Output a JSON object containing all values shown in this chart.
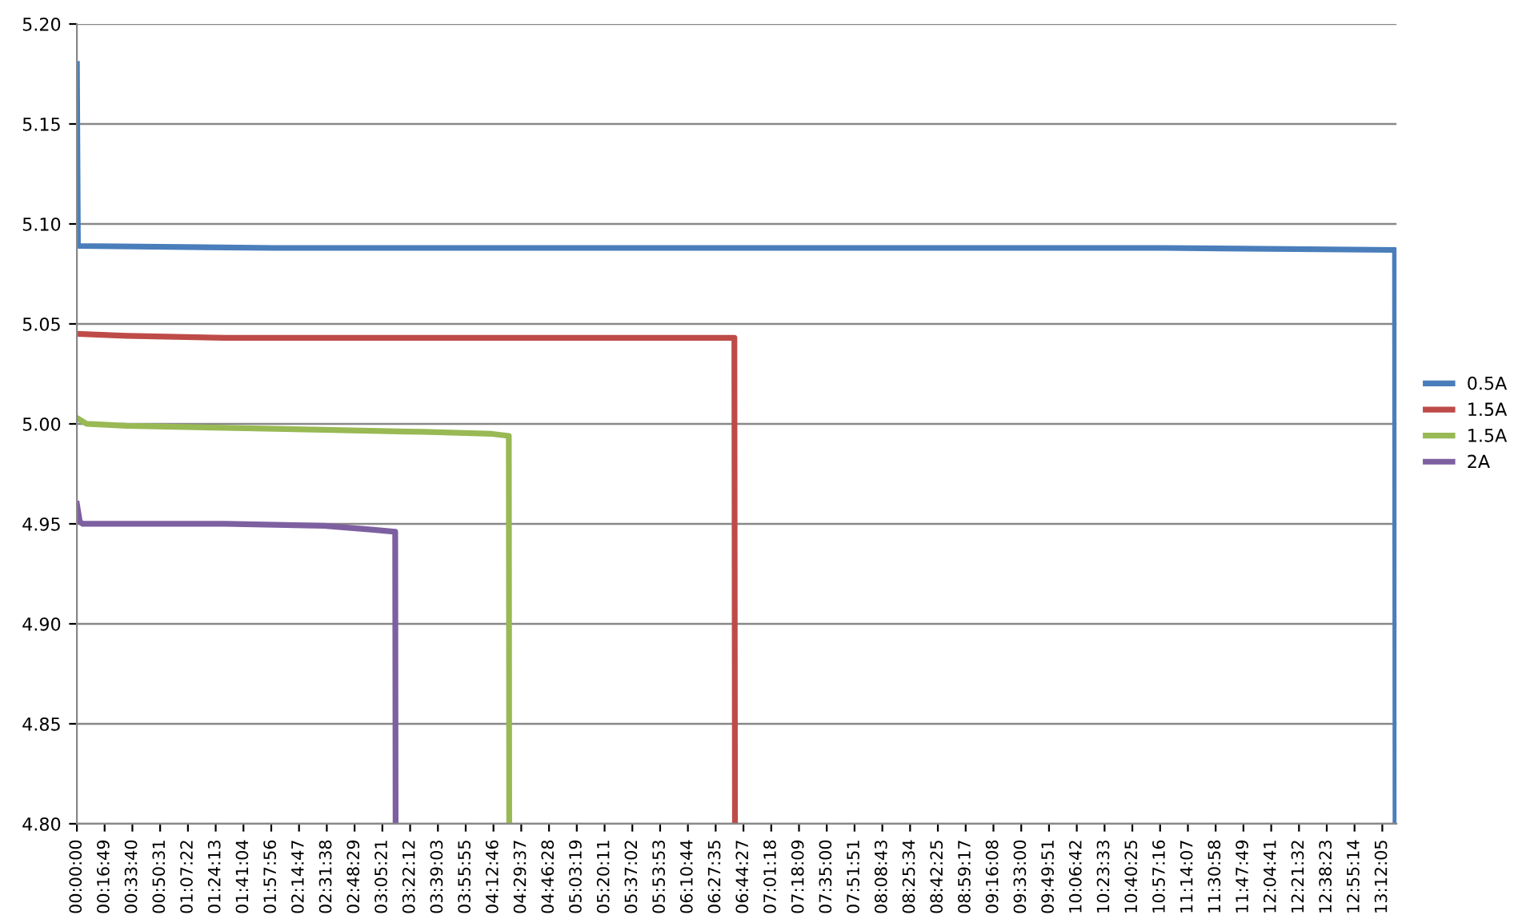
{
  "chart_data": {
    "type": "line",
    "xlim": [
      0,
      13.345
    ],
    "xticks": [
      {
        "value": 0,
        "label": "00:00:00"
      },
      {
        "value": 0.2803,
        "label": "00:16:49"
      },
      {
        "value": 0.5611,
        "label": "00:33:40"
      },
      {
        "value": 0.8419,
        "label": "00:50:31"
      },
      {
        "value": 1.1228,
        "label": "01:07:22"
      },
      {
        "value": 1.4036,
        "label": "01:24:13"
      },
      {
        "value": 1.6844,
        "label": "01:41:04"
      },
      {
        "value": 1.9656,
        "label": "01:57:56"
      },
      {
        "value": 2.2464,
        "label": "02:14:47"
      },
      {
        "value": 2.5272,
        "label": "02:31:38"
      },
      {
        "value": 2.8081,
        "label": "02:48:29"
      },
      {
        "value": 3.0892,
        "label": "03:05:21"
      },
      {
        "value": 3.37,
        "label": "03:22:12"
      },
      {
        "value": 3.6508,
        "label": "03:39:03"
      },
      {
        "value": 3.9319,
        "label": "03:55:55"
      },
      {
        "value": 4.2128,
        "label": "04:12:46"
      },
      {
        "value": 4.4936,
        "label": "04:29:37"
      },
      {
        "value": 4.7744,
        "label": "04:46:28"
      },
      {
        "value": 5.0553,
        "label": "05:03:19"
      },
      {
        "value": 5.3364,
        "label": "05:20:11"
      },
      {
        "value": 5.6172,
        "label": "05:37:02"
      },
      {
        "value": 5.8981,
        "label": "05:53:53"
      },
      {
        "value": 6.1789,
        "label": "06:10:44"
      },
      {
        "value": 6.4597,
        "label": "06:27:35"
      },
      {
        "value": 6.7408,
        "label": "06:44:27"
      },
      {
        "value": 7.0217,
        "label": "07:01:18"
      },
      {
        "value": 7.3025,
        "label": "07:18:09"
      },
      {
        "value": 7.5833,
        "label": "07:35:00"
      },
      {
        "value": 7.8642,
        "label": "07:51:51"
      },
      {
        "value": 8.1453,
        "label": "08:08:43"
      },
      {
        "value": 8.4261,
        "label": "08:25:34"
      },
      {
        "value": 8.7069,
        "label": "08:42:25"
      },
      {
        "value": 8.9881,
        "label": "08:59:17"
      },
      {
        "value": 9.2689,
        "label": "09:16:08"
      },
      {
        "value": 9.55,
        "label": "09:33:00"
      },
      {
        "value": 9.8308,
        "label": "09:49:51"
      },
      {
        "value": 10.1117,
        "label": "10:06:42"
      },
      {
        "value": 10.3925,
        "label": "10:23:33"
      },
      {
        "value": 10.6736,
        "label": "10:40:25"
      },
      {
        "value": 10.9544,
        "label": "10:57:16"
      },
      {
        "value": 11.2353,
        "label": "11:14:07"
      },
      {
        "value": 11.5161,
        "label": "11:30:58"
      },
      {
        "value": 11.7969,
        "label": "11:47:49"
      },
      {
        "value": 12.0781,
        "label": "12:04:41"
      },
      {
        "value": 12.3589,
        "label": "12:21:32"
      },
      {
        "value": 12.6397,
        "label": "12:38:23"
      },
      {
        "value": 12.9206,
        "label": "12:55:14"
      },
      {
        "value": 13.2014,
        "label": "13:12:05"
      }
    ],
    "ylim": [
      4.8,
      5.2
    ],
    "yticks": [
      {
        "value": 4.8,
        "label": "4.80"
      },
      {
        "value": 4.85,
        "label": "4.85"
      },
      {
        "value": 4.9,
        "label": "4.90"
      },
      {
        "value": 4.95,
        "label": "4.95"
      },
      {
        "value": 5.0,
        "label": "5.00"
      },
      {
        "value": 5.05,
        "label": "5.05"
      },
      {
        "value": 5.1,
        "label": "5.10"
      },
      {
        "value": 5.15,
        "label": "5.15"
      },
      {
        "value": 5.2,
        "label": "5.20"
      }
    ],
    "grid": "y",
    "legend": "right",
    "marker": "none",
    "line_style": "solid",
    "series": [
      {
        "name": "0.5A",
        "color": "#4a7ebb",
        "x": [
          0,
          0.01,
          0.02,
          2,
          5,
          8,
          11,
          13.33,
          13.335
        ],
        "values": [
          5.18,
          5.09,
          5.089,
          5.088,
          5.088,
          5.088,
          5.088,
          5.087,
          4.8
        ]
      },
      {
        "name": "1.5A",
        "color": "#be4b48",
        "x": [
          0,
          0.5,
          1.5,
          3,
          5,
          6.649,
          6.655
        ],
        "values": [
          5.045,
          5.044,
          5.043,
          5.043,
          5.043,
          5.043,
          4.8
        ]
      },
      {
        "name": "1.5A",
        "color": "#98b954",
        "x": [
          0,
          0.1,
          0.5,
          1.5,
          2.5,
          3.5,
          4.2,
          4.368,
          4.372
        ],
        "values": [
          5.003,
          5.0,
          4.999,
          4.998,
          4.997,
          4.996,
          4.995,
          4.994,
          4.8
        ]
      },
      {
        "name": "2A",
        "color": "#7d60a0",
        "x": [
          0,
          0.03,
          0.06,
          1.5,
          2.5,
          3.0,
          3.219,
          3.223
        ],
        "values": [
          4.96,
          4.951,
          4.95,
          4.95,
          4.949,
          4.947,
          4.946,
          4.8
        ]
      }
    ]
  }
}
